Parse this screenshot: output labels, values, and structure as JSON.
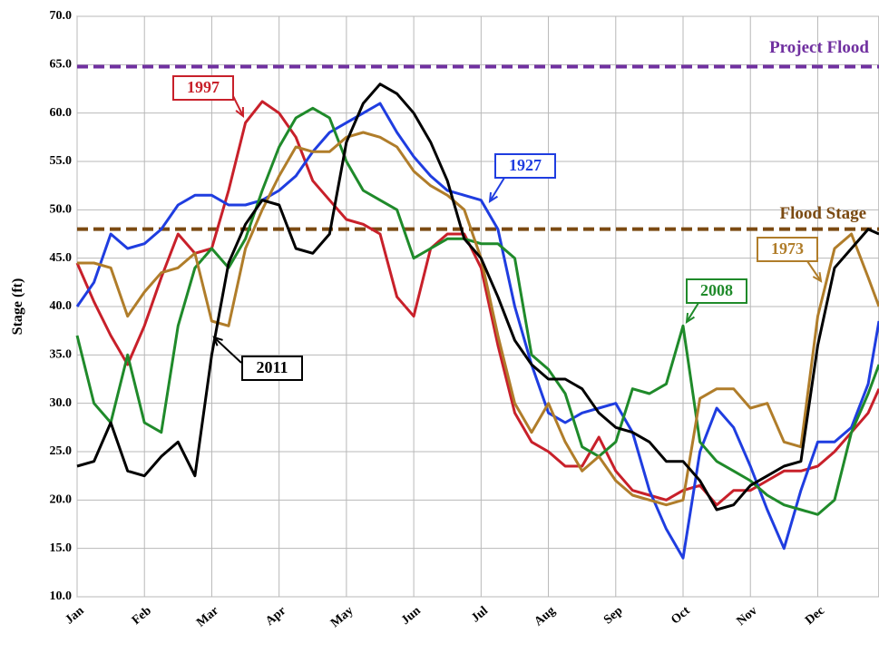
{
  "chart_data": {
    "type": "line",
    "y_label": "Stage (ft)",
    "grid": true,
    "x": [
      0,
      0.25,
      0.5,
      0.75,
      1,
      1.25,
      1.5,
      1.75,
      2,
      2.25,
      2.5,
      2.75,
      3,
      3.25,
      3.5,
      3.75,
      4,
      4.25,
      4.5,
      4.75,
      5,
      5.25,
      5.5,
      5.75,
      6,
      6.25,
      6.5,
      6.75,
      7,
      7.25,
      7.5,
      7.75,
      8,
      8.25,
      8.5,
      8.75,
      9,
      9.25,
      9.5,
      9.75,
      10,
      10.25,
      10.5,
      10.75,
      11,
      11.25,
      11.5,
      11.75,
      11.91
    ],
    "xlim": [
      0,
      11.91
    ],
    "xticks": [
      {
        "value": 0,
        "label": "Jan"
      },
      {
        "value": 1,
        "label": "Feb"
      },
      {
        "value": 2,
        "label": "Mar"
      },
      {
        "value": 3,
        "label": "Apr"
      },
      {
        "value": 4,
        "label": "May"
      },
      {
        "value": 5,
        "label": "Jun"
      },
      {
        "value": 6,
        "label": "Jul"
      },
      {
        "value": 7,
        "label": "Aug"
      },
      {
        "value": 8,
        "label": "Sep"
      },
      {
        "value": 9,
        "label": "Oct"
      },
      {
        "value": 10,
        "label": "Nov"
      },
      {
        "value": 11,
        "label": "Dec"
      }
    ],
    "ylim": [
      10,
      70
    ],
    "yticks": [
      {
        "value": 10,
        "label": "10.0"
      },
      {
        "value": 15,
        "label": "15.0"
      },
      {
        "value": 20,
        "label": "20.0"
      },
      {
        "value": 25,
        "label": "25.0"
      },
      {
        "value": 30,
        "label": "30.0"
      },
      {
        "value": 35,
        "label": "35.0"
      },
      {
        "value": 40,
        "label": "40.0"
      },
      {
        "value": 45,
        "label": "45.0"
      },
      {
        "value": 50,
        "label": "50.0"
      },
      {
        "value": 55,
        "label": "55.0"
      },
      {
        "value": 60,
        "label": "60.0"
      },
      {
        "value": 65,
        "label": "65.0"
      },
      {
        "value": 70,
        "label": "70.0"
      }
    ],
    "reference_lines": [
      {
        "label": "Project Flood",
        "value": 64.8,
        "color": "#7030a0"
      },
      {
        "label": "Flood Stage",
        "value": 48,
        "color": "#7b4a12"
      }
    ],
    "series": [
      {
        "name": "1997",
        "color": "#c8202a",
        "values": [
          44.5,
          40.5,
          37,
          34,
          38,
          43,
          47.5,
          45.5,
          46,
          52,
          59,
          61.2,
          60,
          57.5,
          53,
          51,
          49,
          48.5,
          47.5,
          41,
          39,
          46,
          47.5,
          47.5,
          44,
          36,
          29,
          26,
          25,
          23.5,
          23.5,
          26.5,
          23,
          21,
          20.5,
          20,
          21,
          21.5,
          19.5,
          21,
          21,
          22,
          23,
          23,
          23.5,
          25,
          27,
          29,
          31.5
        ]
      },
      {
        "name": "1927",
        "color": "#1f3de0",
        "values": [
          40,
          42.5,
          47.5,
          46,
          46.5,
          48,
          50.5,
          51.5,
          51.5,
          50.5,
          50.5,
          51,
          52,
          53.5,
          56,
          58,
          59,
          60,
          61,
          58,
          55.5,
          53.5,
          52,
          51.5,
          51,
          48,
          40,
          34,
          29,
          28,
          29,
          29.5,
          30,
          27,
          21,
          17,
          14,
          25,
          29.5,
          27.5,
          23.5,
          19,
          15,
          21,
          26,
          26,
          27.5,
          32,
          38.5
        ]
      },
      {
        "name": "2008",
        "color": "#1f8a2a",
        "values": [
          37,
          30,
          28,
          35,
          28,
          27,
          38,
          44,
          46,
          44,
          47,
          52,
          56.5,
          59.5,
          60.5,
          59.5,
          55,
          52,
          51,
          50,
          45,
          46,
          47,
          47,
          46.5,
          46.5,
          45,
          35,
          33.5,
          31,
          25.5,
          24.5,
          26,
          31.5,
          31,
          32,
          38,
          26,
          24,
          23,
          22,
          20.5,
          19.5,
          19,
          18.5,
          20,
          27,
          31,
          34
        ]
      },
      {
        "name": "1973",
        "color": "#b07d2a",
        "values": [
          44.5,
          44.5,
          44,
          39,
          41.5,
          43.5,
          44,
          45.5,
          38.5,
          38,
          46,
          50,
          53.5,
          56.5,
          56,
          56,
          57.5,
          58,
          57.5,
          56.5,
          54,
          52.5,
          51.5,
          50,
          45,
          37,
          30,
          27,
          30,
          26,
          23,
          24.5,
          22,
          20.5,
          20,
          19.5,
          20,
          30.5,
          31.5,
          31.5,
          29.5,
          30,
          26,
          25.5,
          39,
          46,
          47.5,
          43,
          40
        ]
      },
      {
        "name": "2011",
        "color": "#000000",
        "values": [
          23.5,
          24,
          28,
          23,
          22.5,
          24.5,
          26,
          22.5,
          35,
          44.5,
          48.5,
          51,
          50.5,
          46,
          45.5,
          47.5,
          57,
          61,
          63,
          62,
          60,
          57,
          53,
          47,
          45,
          41,
          36.5,
          34,
          32.5,
          32.5,
          31.5,
          29,
          27.5,
          27,
          26,
          24,
          24,
          22,
          19,
          19.5,
          21.5,
          22.5,
          23.5,
          24,
          36,
          44,
          46,
          48,
          47.5
        ]
      }
    ]
  }
}
